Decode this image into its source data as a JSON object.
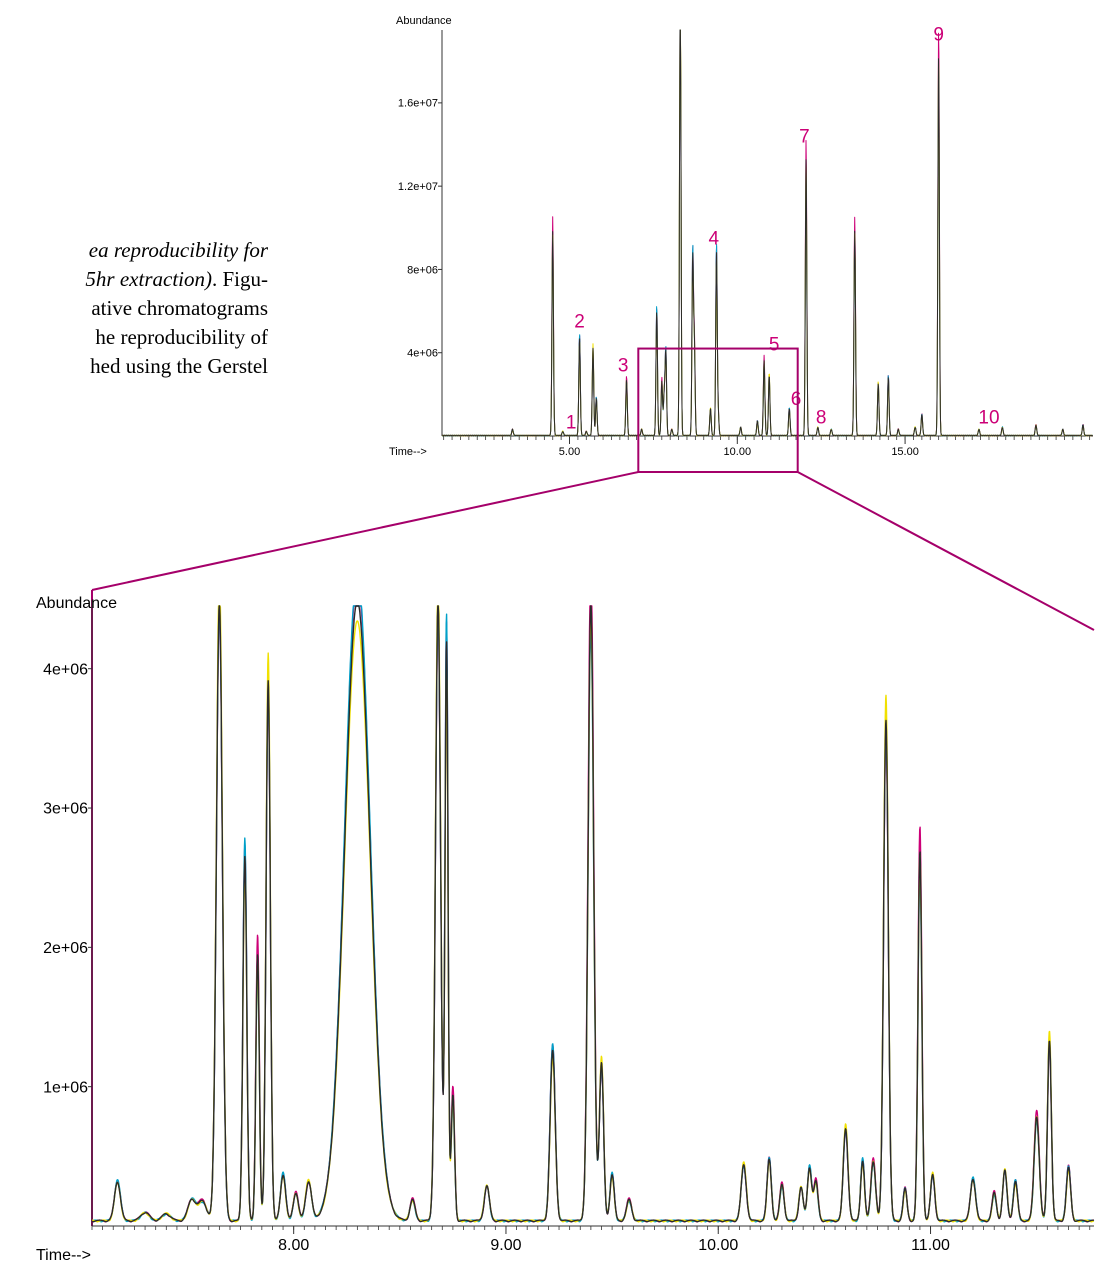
{
  "caption": {
    "lines": [
      {
        "segments": [
          {
            "text": "ea reproducibility for",
            "italic": true
          }
        ]
      },
      {
        "segments": [
          {
            "text": "5hr extraction)",
            "italic": true
          },
          {
            "text": ". Figu-",
            "italic": false
          }
        ]
      },
      {
        "segments": [
          {
            "text": "ative chromatograms",
            "italic": false
          }
        ]
      },
      {
        "segments": [
          {
            "text": "he reproducibility of",
            "italic": false
          }
        ]
      },
      {
        "segments": [
          {
            "text": "hed using the Gerstel",
            "italic": false
          }
        ]
      }
    ]
  },
  "colors": {
    "annotation": "#cc0077",
    "zoom_box": "#a5006a",
    "axis": "#333333",
    "series": [
      "#cc0077",
      "#00a0c8",
      "#f0e000",
      "#2b2b2b"
    ]
  },
  "chart_data": [
    {
      "type": "line",
      "ylabel": "Abundance",
      "xlabel": "Time-->",
      "xlim": [
        1.2,
        20.6
      ],
      "ylim": [
        0,
        19500000
      ],
      "xticks": [
        5,
        10,
        15
      ],
      "xtick_labels": [
        "5.00",
        "10.00",
        "15.00"
      ],
      "yticks": [
        4000000,
        8000000,
        12000000,
        16000000
      ],
      "ytick_labels": [
        "4e+06",
        "8e+06",
        "1.2e+07",
        "1.6e+07"
      ],
      "grid": false,
      "series_count": 4,
      "peaks": [
        {
          "x": 3.3,
          "y": 300000
        },
        {
          "x": 4.5,
          "y": 9800000
        },
        {
          "x": 4.8,
          "y": 200000
        },
        {
          "x": 5.3,
          "y": 4700000
        },
        {
          "x": 5.5,
          "y": 200000
        },
        {
          "x": 5.7,
          "y": 4200000
        },
        {
          "x": 5.8,
          "y": 1800000
        },
        {
          "x": 6.7,
          "y": 2700000
        },
        {
          "x": 7.15,
          "y": 300000
        },
        {
          "x": 7.6,
          "y": 6000000
        },
        {
          "x": 7.75,
          "y": 2600000
        },
        {
          "x": 7.82,
          "y": 1900000
        },
        {
          "x": 7.87,
          "y": 4000000
        },
        {
          "x": 8.05,
          "y": 300000
        },
        {
          "x": 8.3,
          "y": 22000000
        },
        {
          "x": 8.67,
          "y": 8500000
        },
        {
          "x": 8.72,
          "y": 4300000
        },
        {
          "x": 9.2,
          "y": 1300000
        },
        {
          "x": 9.38,
          "y": 8800000
        },
        {
          "x": 9.43,
          "y": 1100000
        },
        {
          "x": 10.1,
          "y": 400000
        },
        {
          "x": 10.6,
          "y": 700000
        },
        {
          "x": 10.8,
          "y": 3600000
        },
        {
          "x": 10.95,
          "y": 2900000
        },
        {
          "x": 11.55,
          "y": 1300000
        },
        {
          "x": 12.05,
          "y": 13300000
        },
        {
          "x": 12.4,
          "y": 400000
        },
        {
          "x": 12.8,
          "y": 300000
        },
        {
          "x": 13.5,
          "y": 9800000
        },
        {
          "x": 14.2,
          "y": 2500000
        },
        {
          "x": 14.5,
          "y": 2800000
        },
        {
          "x": 14.8,
          "y": 300000
        },
        {
          "x": 15.3,
          "y": 400000
        },
        {
          "x": 15.5,
          "y": 1000000
        },
        {
          "x": 16.0,
          "y": 18400000
        },
        {
          "x": 17.2,
          "y": 300000
        },
        {
          "x": 17.9,
          "y": 400000
        },
        {
          "x": 18.9,
          "y": 500000
        },
        {
          "x": 19.7,
          "y": 300000
        },
        {
          "x": 20.3,
          "y": 500000
        }
      ],
      "annotations": [
        {
          "label": "1",
          "x": 5.05,
          "y": 350000
        },
        {
          "label": "2",
          "x": 5.3,
          "y": 5200000
        },
        {
          "label": "3",
          "x": 6.6,
          "y": 3100000
        },
        {
          "label": "4",
          "x": 9.3,
          "y": 9200000
        },
        {
          "label": "5",
          "x": 11.1,
          "y": 4100000
        },
        {
          "label": "6",
          "x": 11.75,
          "y": 1500000
        },
        {
          "label": "7",
          "x": 12.0,
          "y": 14100000
        },
        {
          "label": "8",
          "x": 12.5,
          "y": 600000
        },
        {
          "label": "9",
          "x": 16.0,
          "y": 19000000
        },
        {
          "label": "10",
          "x": 17.5,
          "y": 600000
        }
      ],
      "zoom_region": {
        "x": [
          7.05,
          11.8
        ],
        "y": [
          0,
          4200000
        ]
      }
    },
    {
      "type": "line",
      "ylabel": "Abundance",
      "xlabel": "Time-->",
      "xlim": [
        7.05,
        11.77
      ],
      "ylim": [
        0,
        4450000
      ],
      "xticks": [
        8,
        9,
        10,
        11
      ],
      "xtick_labels": [
        "8.00",
        "9.00",
        "10.00",
        "11.00"
      ],
      "yticks": [
        1000000,
        2000000,
        3000000,
        4000000
      ],
      "ytick_labels": [
        "1e+06",
        "2e+06",
        "3e+06",
        "4e+06"
      ],
      "grid": false,
      "series_count": 4,
      "baseline": 30000,
      "peaks": [
        {
          "x": 7.17,
          "y": 280000,
          "w": 0.014
        },
        {
          "x": 7.3,
          "y": 60000,
          "w": 0.02
        },
        {
          "x": 7.4,
          "y": 50000,
          "w": 0.02
        },
        {
          "x": 7.52,
          "y": 150000,
          "w": 0.018
        },
        {
          "x": 7.57,
          "y": 140000,
          "w": 0.02
        },
        {
          "x": 7.65,
          "y": 4450000,
          "w": 0.014
        },
        {
          "x": 7.77,
          "y": 2620000,
          "w": 0.009
        },
        {
          "x": 7.83,
          "y": 1920000,
          "w": 0.008
        },
        {
          "x": 7.88,
          "y": 3880000,
          "w": 0.01
        },
        {
          "x": 7.95,
          "y": 330000,
          "w": 0.012
        },
        {
          "x": 8.01,
          "y": 200000,
          "w": 0.012
        },
        {
          "x": 8.07,
          "y": 280000,
          "w": 0.014
        },
        {
          "x": 8.3,
          "y": 4450000,
          "w": 0.06
        },
        {
          "x": 8.56,
          "y": 150000,
          "w": 0.012
        },
        {
          "x": 8.68,
          "y": 4450000,
          "w": 0.012
        },
        {
          "x": 8.72,
          "y": 4150000,
          "w": 0.007
        },
        {
          "x": 8.75,
          "y": 900000,
          "w": 0.008
        },
        {
          "x": 8.91,
          "y": 250000,
          "w": 0.012
        },
        {
          "x": 9.22,
          "y": 1220000,
          "w": 0.012
        },
        {
          "x": 9.4,
          "y": 4450000,
          "w": 0.013
        },
        {
          "x": 9.45,
          "y": 1130000,
          "w": 0.01
        },
        {
          "x": 9.5,
          "y": 330000,
          "w": 0.01
        },
        {
          "x": 9.58,
          "y": 150000,
          "w": 0.012
        },
        {
          "x": 10.12,
          "y": 400000,
          "w": 0.012
        },
        {
          "x": 10.24,
          "y": 440000,
          "w": 0.01
        },
        {
          "x": 10.3,
          "y": 260000,
          "w": 0.01
        },
        {
          "x": 10.39,
          "y": 240000,
          "w": 0.01
        },
        {
          "x": 10.43,
          "y": 380000,
          "w": 0.01
        },
        {
          "x": 10.46,
          "y": 280000,
          "w": 0.01
        },
        {
          "x": 10.6,
          "y": 660000,
          "w": 0.011
        },
        {
          "x": 10.68,
          "y": 430000,
          "w": 0.009
        },
        {
          "x": 10.73,
          "y": 430000,
          "w": 0.011
        },
        {
          "x": 10.79,
          "y": 3600000,
          "w": 0.011
        },
        {
          "x": 10.88,
          "y": 230000,
          "w": 0.009
        },
        {
          "x": 10.95,
          "y": 2650000,
          "w": 0.009
        },
        {
          "x": 11.01,
          "y": 330000,
          "w": 0.01
        },
        {
          "x": 11.2,
          "y": 300000,
          "w": 0.012
        },
        {
          "x": 11.3,
          "y": 200000,
          "w": 0.01
        },
        {
          "x": 11.35,
          "y": 360000,
          "w": 0.01
        },
        {
          "x": 11.4,
          "y": 280000,
          "w": 0.01
        },
        {
          "x": 11.5,
          "y": 750000,
          "w": 0.012
        },
        {
          "x": 11.56,
          "y": 1300000,
          "w": 0.009
        },
        {
          "x": 11.65,
          "y": 380000,
          "w": 0.01
        }
      ]
    }
  ]
}
